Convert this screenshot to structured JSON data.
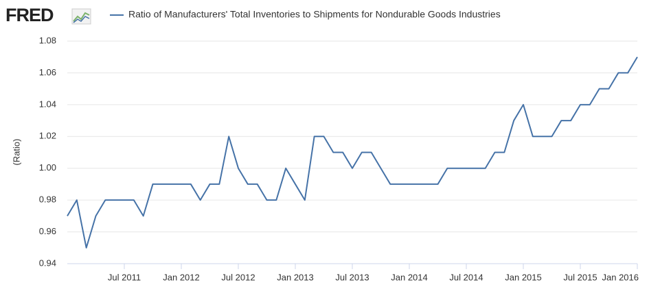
{
  "logo": "FRED",
  "chart_data": {
    "type": "line",
    "title": "Ratio of Manufacturers' Total Inventories to Shipments for Nondurable Goods Industries",
    "y_label": "(Ratio)",
    "x": [
      "2011-01",
      "2011-02",
      "2011-03",
      "2011-04",
      "2011-05",
      "2011-06",
      "2011-07",
      "2011-08",
      "2011-09",
      "2011-10",
      "2011-11",
      "2011-12",
      "2012-01",
      "2012-02",
      "2012-03",
      "2012-04",
      "2012-05",
      "2012-06",
      "2012-07",
      "2012-08",
      "2012-09",
      "2012-10",
      "2012-11",
      "2012-12",
      "2013-01",
      "2013-02",
      "2013-03",
      "2013-04",
      "2013-05",
      "2013-06",
      "2013-07",
      "2013-08",
      "2013-09",
      "2013-10",
      "2013-11",
      "2013-12",
      "2014-01",
      "2014-02",
      "2014-03",
      "2014-04",
      "2014-05",
      "2014-06",
      "2014-07",
      "2014-08",
      "2014-09",
      "2014-10",
      "2014-11",
      "2014-12",
      "2015-01",
      "2015-02",
      "2015-03",
      "2015-04",
      "2015-05",
      "2015-06",
      "2015-07",
      "2015-08",
      "2015-09",
      "2015-10",
      "2015-11",
      "2015-12",
      "2016-01"
    ],
    "series": [
      {
        "name": "Ratio of Manufacturers' Total Inventories to Shipments for Nondurable Goods Industries",
        "color": "#4572a7",
        "values": [
          0.97,
          0.98,
          0.95,
          0.97,
          0.98,
          0.98,
          0.98,
          0.98,
          0.97,
          0.99,
          0.99,
          0.99,
          0.99,
          0.99,
          0.98,
          0.99,
          0.99,
          1.02,
          1.0,
          0.99,
          0.99,
          0.98,
          0.98,
          1.0,
          0.99,
          0.98,
          1.02,
          1.02,
          1.01,
          1.01,
          1.0,
          1.01,
          1.01,
          1.0,
          0.99,
          0.99,
          0.99,
          0.99,
          0.99,
          0.99,
          1.0,
          1.0,
          1.0,
          1.0,
          1.0,
          1.01,
          1.01,
          1.03,
          1.04,
          1.02,
          1.02,
          1.02,
          1.03,
          1.03,
          1.04,
          1.04,
          1.05,
          1.05,
          1.06,
          1.06,
          1.07
        ]
      }
    ],
    "xlim": [
      "2011-01",
      "2016-01"
    ],
    "xticks": [
      {
        "value": "2011-07",
        "label": "Jul 2011"
      },
      {
        "value": "2012-01",
        "label": "Jan 2012"
      },
      {
        "value": "2012-07",
        "label": "Jul 2012"
      },
      {
        "value": "2013-01",
        "label": "Jan 2013"
      },
      {
        "value": "2013-07",
        "label": "Jul 2013"
      },
      {
        "value": "2014-01",
        "label": "Jan 2014"
      },
      {
        "value": "2014-07",
        "label": "Jul 2014"
      },
      {
        "value": "2015-01",
        "label": "Jan 2015"
      },
      {
        "value": "2015-07",
        "label": "Jul 2015"
      },
      {
        "value": "2016-01",
        "label": "Jan 2016"
      }
    ],
    "ylim": [
      0.94,
      1.08
    ],
    "yticks": [
      0.94,
      0.96,
      0.98,
      {
        "value": 1.0,
        "label": "1.00"
      },
      1.02,
      1.04,
      1.06,
      1.08
    ],
    "grid": true
  }
}
